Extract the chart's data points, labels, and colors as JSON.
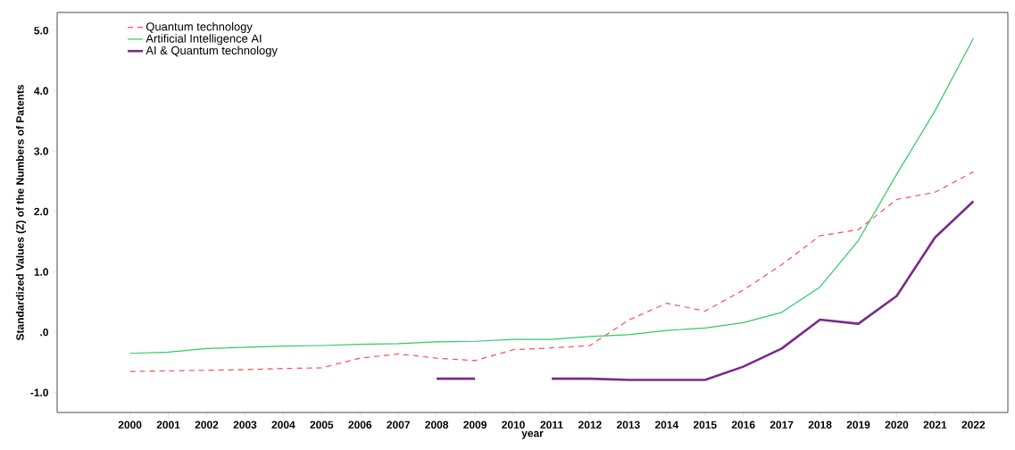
{
  "chart_data": {
    "type": "line",
    "xlabel": "year",
    "ylabel": "Standardized Values (Z) of the Numbers of Patents",
    "categories": [
      "2000",
      "2001",
      "2002",
      "2003",
      "2004",
      "2005",
      "2006",
      "2007",
      "2008",
      "2009",
      "2010",
      "2011",
      "2012",
      "2013",
      "2014",
      "2015",
      "2016",
      "2017",
      "2018",
      "2019",
      "2020",
      "2021",
      "2022"
    ],
    "ylim": [
      -1.33,
      5.3
    ],
    "yticks": [
      {
        "value": -1,
        "label": "-1.0"
      },
      {
        "value": 0,
        "label": ".0"
      },
      {
        "value": 1,
        "label": "1.0"
      },
      {
        "value": 2,
        "label": "2.0"
      },
      {
        "value": 3,
        "label": "3.0"
      },
      {
        "value": 4,
        "label": "4.0"
      },
      {
        "value": 5,
        "label": "5.0"
      }
    ],
    "legend": "top left",
    "grid": false,
    "marker": "none",
    "series": [
      {
        "name": "Quantum technology",
        "color": "#ff4d4d",
        "line_style": "dashed",
        "values": [
          -0.65,
          -0.64,
          -0.63,
          -0.62,
          -0.6,
          -0.59,
          -0.43,
          -0.36,
          -0.43,
          -0.47,
          -0.29,
          -0.26,
          -0.22,
          0.2,
          0.48,
          0.35,
          0.7,
          1.12,
          1.6,
          1.7,
          2.2,
          2.32,
          2.66
        ]
      },
      {
        "name": "Artificial Intelligence AI",
        "color": "#2ecc66",
        "line_style": "solid",
        "values": [
          -0.35,
          -0.33,
          -0.27,
          -0.25,
          -0.23,
          -0.22,
          -0.2,
          -0.19,
          -0.16,
          -0.15,
          -0.12,
          -0.12,
          -0.07,
          -0.04,
          0.03,
          0.07,
          0.16,
          0.33,
          0.75,
          1.52,
          2.62,
          3.67,
          4.87
        ]
      },
      {
        "name": "AI & Quantum technology",
        "color": "#7b2a8a",
        "line_style": "solid",
        "values": [
          null,
          null,
          null,
          null,
          null,
          null,
          null,
          null,
          -0.77,
          -0.77,
          null,
          -0.77,
          -0.77,
          -0.79,
          -0.79,
          -0.79,
          -0.57,
          -0.27,
          0.21,
          0.14,
          0.6,
          1.57,
          2.17
        ]
      }
    ]
  }
}
